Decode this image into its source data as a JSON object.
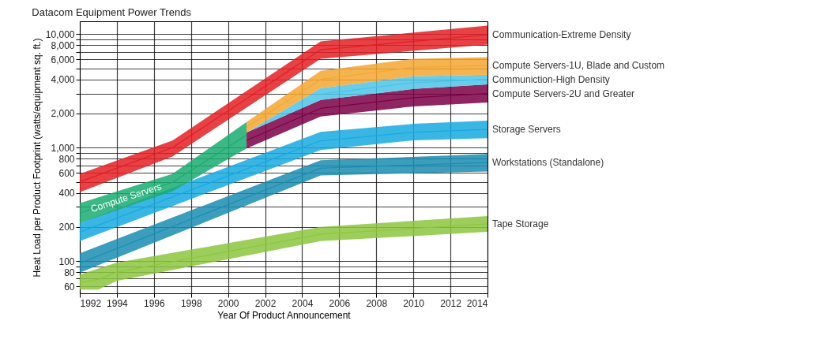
{
  "chart_data": {
    "type": "line",
    "title": "Datacom Equipment Power Trends",
    "xlabel": "Year Of Product Announcement",
    "ylabel": "Heat Load per Product Footprint (watts/equipment sq. ft.)",
    "log": true,
    "grid": true,
    "xlim": [
      1992,
      2014
    ],
    "xticks": [
      1992,
      1994,
      1996,
      1998,
      2000,
      2002,
      2004,
      2006,
      2008,
      2010,
      2012,
      2014
    ],
    "ylim": [
      52,
      13000
    ],
    "yticks": [
      60,
      {
        "value": 70,
        "label": null
      },
      80,
      {
        "value": 90,
        "label": null
      },
      100,
      200,
      {
        "value": 300,
        "label": null
      },
      400,
      {
        "value": 500,
        "label": null
      },
      600,
      {
        "value": 700,
        "label": null
      },
      800,
      {
        "value": 900,
        "label": null
      },
      {
        "value": 1000,
        "label": "1,000"
      },
      {
        "value": 2000,
        "label": "2,000"
      },
      {
        "value": 3000,
        "label": null
      },
      {
        "value": 4000,
        "label": "4,000"
      },
      {
        "value": 5000,
        "label": null
      },
      {
        "value": 6000,
        "label": "6,000"
      },
      {
        "value": 7000,
        "label": null
      },
      {
        "value": 8000,
        "label": "8,000"
      },
      {
        "value": 9000,
        "label": null
      },
      {
        "value": 10000,
        "label": "10,000"
      }
    ],
    "series": [
      {
        "name": "Tape Storage",
        "color": "#8cc63f",
        "x": [
          1992,
          1993,
          1994,
          2005,
          2014
        ],
        "values": [
          65,
          69,
          80,
          173,
          213
        ],
        "lower": [
          56,
          56,
          67,
          150,
          181
        ],
        "upper": [
          76,
          86,
          97,
          200,
          250
        ]
      },
      {
        "name": "Workstations (Standalone)",
        "color": "#1a8db0",
        "x": [
          1992,
          2005,
          2014
        ],
        "values": [
          96,
          660,
          740
        ],
        "lower": [
          79,
          569,
          617
        ],
        "upper": [
          117,
          773,
          879
        ]
      },
      {
        "name": "Storage Servers",
        "color": "#17a9e1",
        "x": [
          1992,
          2005,
          2010,
          2014
        ],
        "values": [
          180,
          1150,
          1370,
          1450
        ],
        "lower": [
          150,
          953,
          1160,
          1210
        ],
        "upper": [
          217,
          1380,
          1620,
          1730
        ]
      },
      {
        "name": "Compute Servers",
        "color": "#1aab72",
        "x": [
          1992,
          1997,
          2001
        ],
        "values": [
          265,
          495,
          1290
        ],
        "lower": [
          217,
          413,
          985
        ],
        "upper": [
          324,
          588,
          1680
        ]
      },
      {
        "name": "Compute Servers-2U and Greater",
        "color": "#7b0046",
        "x": [
          2001,
          2005,
          2010,
          2014
        ],
        "values": [
          1160,
          2220,
          2760,
          3000
        ],
        "lower": [
          985,
          1880,
          2310,
          2500
        ],
        "upper": [
          1360,
          2630,
          3290,
          3620
        ]
      },
      {
        "name": "Communiction-High Density",
        "color": "#4dc3e8",
        "x": [
          2001,
          2005,
          2010,
          2014
        ],
        "values": [
          null,
          2970,
          3740,
          4000
        ],
        "lower": [
          1360,
          2630,
          3290,
          3620
        ],
        "upper": [
          1360,
          3350,
          4260,
          4400
        ]
      },
      {
        "name": "Compute Servers-1U, Blade and Custom",
        "color": "#f5a733",
        "x": [
          2001,
          2005,
          2010,
          2014
        ],
        "values": [
          1520,
          4000,
          5100,
          5300
        ],
        "lower": [
          1360,
          3350,
          4260,
          4400
        ],
        "upper": [
          1680,
          4770,
          6070,
          6270
        ]
      },
      {
        "name": "Communication-Extreme Density",
        "color": "#e31e24",
        "x": [
          1992,
          1997,
          2005,
          2014
        ],
        "values": [
          500,
          1000,
          7300,
          9900
        ],
        "lower": [
          405,
          837,
          6070,
          8110
        ],
        "upper": [
          588,
          1156,
          8650,
          11900
        ]
      }
    ]
  }
}
